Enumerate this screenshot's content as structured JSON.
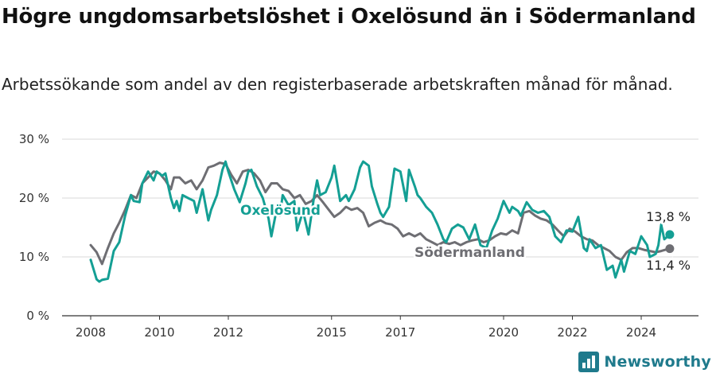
{
  "title": "Högre ungdomsarbetslöshet i Oxelösund än i Södermanland",
  "subtitle": "Arbetssökande som andel av den registerbaserade arbetskraften månad för månad.",
  "brand": "Newsworthy",
  "colors": {
    "oxelosund": "#149f94",
    "sodermanland": "#6e6e73",
    "grid": "#d8d8d8",
    "axis": "#333333"
  },
  "chart_data": {
    "type": "line",
    "ylim": [
      0,
      30
    ],
    "yticks": [
      0,
      10,
      20,
      30
    ],
    "yticklabels": [
      "0 %",
      "10 %",
      "20 %",
      "30 %"
    ],
    "xlim": [
      2007.8,
      2025.5
    ],
    "xticks": [
      2008,
      2010,
      2012,
      2015,
      2017,
      2020,
      2022,
      2024
    ],
    "xticklabels": [
      "2008",
      "2010",
      "2012",
      "2015",
      "2017",
      "2020",
      "2022",
      "2024"
    ],
    "series": [
      {
        "name": "Oxelösund",
        "end_label": "13,8 %",
        "x": [
          2008.0,
          2008.17,
          2008.25,
          2008.33,
          2008.5,
          2008.58,
          2008.67,
          2008.83,
          2009.0,
          2009.17,
          2009.25,
          2009.42,
          2009.5,
          2009.67,
          2009.83,
          2009.92,
          2010.08,
          2010.17,
          2010.33,
          2010.42,
          2010.5,
          2010.58,
          2010.67,
          2010.83,
          2011.0,
          2011.08,
          2011.25,
          2011.42,
          2011.5,
          2011.67,
          2011.83,
          2011.92,
          2012.0,
          2012.17,
          2012.33,
          2012.5,
          2012.58,
          2012.67,
          2012.83,
          2013.0,
          2013.17,
          2013.25,
          2013.42,
          2013.5,
          2013.58,
          2013.75,
          2013.92,
          2014.0,
          2014.17,
          2014.33,
          2014.5,
          2014.58,
          2014.67,
          2014.83,
          2015.0,
          2015.08,
          2015.25,
          2015.42,
          2015.5,
          2015.67,
          2015.83,
          2015.92,
          2016.08,
          2016.17,
          2016.33,
          2016.42,
          2016.5,
          2016.67,
          2016.83,
          2017.0,
          2017.17,
          2017.25,
          2017.42,
          2017.5,
          2017.58,
          2017.75,
          2017.92,
          2018.08,
          2018.25,
          2018.33,
          2018.5,
          2018.67,
          2018.83,
          2019.0,
          2019.17,
          2019.33,
          2019.5,
          2019.67,
          2019.83,
          2020.0,
          2020.17,
          2020.25,
          2020.42,
          2020.5,
          2020.67,
          2020.83,
          2021.0,
          2021.17,
          2021.33,
          2021.5,
          2021.67,
          2021.83,
          2022.0,
          2022.17,
          2022.33,
          2022.42,
          2022.5,
          2022.67,
          2022.83,
          2023.0,
          2023.17,
          2023.25,
          2023.42,
          2023.5,
          2023.67,
          2023.83,
          2024.0,
          2024.17,
          2024.25,
          2024.42,
          2024.5,
          2024.58,
          2024.67,
          2024.83
        ],
        "values": [
          9.5,
          6.2,
          5.8,
          6.1,
          6.3,
          8.5,
          11.0,
          12.5,
          17.0,
          20.5,
          19.5,
          19.3,
          22.5,
          24.5,
          23.0,
          24.5,
          23.8,
          24.2,
          20.0,
          18.3,
          19.5,
          17.8,
          20.5,
          20.0,
          19.5,
          17.5,
          21.5,
          16.2,
          18.0,
          20.5,
          24.8,
          26.2,
          24.5,
          21.5,
          19.3,
          22.5,
          24.5,
          24.8,
          22.0,
          20.0,
          16.5,
          13.5,
          18.5,
          17.0,
          20.5,
          18.8,
          19.5,
          14.5,
          17.8,
          13.8,
          20.5,
          23.0,
          20.5,
          21.0,
          23.5,
          25.5,
          19.5,
          20.5,
          19.5,
          21.5,
          25.2,
          26.2,
          25.5,
          22.0,
          19.0,
          17.5,
          16.8,
          18.5,
          25.0,
          24.5,
          19.5,
          24.8,
          22.0,
          20.5,
          20.0,
          18.5,
          17.5,
          15.5,
          13.0,
          12.5,
          14.8,
          15.5,
          15.0,
          13.0,
          15.5,
          12.0,
          11.5,
          14.5,
          16.5,
          19.5,
          17.5,
          18.5,
          17.8,
          17.0,
          19.3,
          18.0,
          17.5,
          17.8,
          16.8,
          13.5,
          12.5,
          14.5,
          14.3,
          16.8,
          11.5,
          11.0,
          13.0,
          11.5,
          12.0,
          7.8,
          8.5,
          6.5,
          9.5,
          7.5,
          11.0,
          10.5,
          13.5,
          12.0,
          10.0,
          10.5,
          12.0,
          15.5,
          13.0,
          13.8
        ]
      },
      {
        "name": "Södermanland",
        "end_label": "11,4 %",
        "x": [
          2008.0,
          2008.17,
          2008.33,
          2008.5,
          2008.67,
          2008.83,
          2009.0,
          2009.17,
          2009.33,
          2009.5,
          2009.67,
          2009.83,
          2010.0,
          2010.17,
          2010.33,
          2010.42,
          2010.58,
          2010.75,
          2010.92,
          2011.08,
          2011.25,
          2011.42,
          2011.58,
          2011.75,
          2011.92,
          2012.08,
          2012.25,
          2012.42,
          2012.58,
          2012.75,
          2012.92,
          2013.08,
          2013.25,
          2013.42,
          2013.58,
          2013.75,
          2013.92,
          2014.08,
          2014.25,
          2014.42,
          2014.58,
          2014.75,
          2014.92,
          2015.08,
          2015.25,
          2015.42,
          2015.58,
          2015.75,
          2015.92,
          2016.08,
          2016.25,
          2016.42,
          2016.58,
          2016.75,
          2016.92,
          2017.08,
          2017.25,
          2017.42,
          2017.58,
          2017.75,
          2017.92,
          2018.08,
          2018.25,
          2018.42,
          2018.58,
          2018.75,
          2018.92,
          2019.08,
          2019.25,
          2019.42,
          2019.58,
          2019.75,
          2019.92,
          2020.08,
          2020.25,
          2020.42,
          2020.58,
          2020.75,
          2020.92,
          2021.08,
          2021.25,
          2021.42,
          2021.58,
          2021.75,
          2021.92,
          2022.08,
          2022.25,
          2022.42,
          2022.58,
          2022.75,
          2022.92,
          2023.08,
          2023.25,
          2023.42,
          2023.58,
          2023.75,
          2023.92,
          2024.08,
          2024.25,
          2024.42,
          2024.58,
          2024.75,
          2024.83
        ],
        "values": [
          12.0,
          10.8,
          8.8,
          11.5,
          14.0,
          15.8,
          18.0,
          20.5,
          20.0,
          22.5,
          23.5,
          24.5,
          24.2,
          23.0,
          21.5,
          23.5,
          23.5,
          22.5,
          23.0,
          21.5,
          23.0,
          25.2,
          25.5,
          26.0,
          25.8,
          24.0,
          22.5,
          24.5,
          24.8,
          24.2,
          23.0,
          21.0,
          22.5,
          22.5,
          21.5,
          21.2,
          20.0,
          20.5,
          19.0,
          19.5,
          20.5,
          19.3,
          18.0,
          16.8,
          17.5,
          18.5,
          18.0,
          18.3,
          17.5,
          15.2,
          15.8,
          16.2,
          15.7,
          15.5,
          14.8,
          13.5,
          14.0,
          13.5,
          14.0,
          13.0,
          12.5,
          12.0,
          12.5,
          12.2,
          12.5,
          12.0,
          12.5,
          12.8,
          13.0,
          12.5,
          12.8,
          13.5,
          14.0,
          13.8,
          14.5,
          14.0,
          17.5,
          17.8,
          17.0,
          16.5,
          16.2,
          15.5,
          14.5,
          13.5,
          14.8,
          14.3,
          13.5,
          13.0,
          12.8,
          12.0,
          11.5,
          11.0,
          10.0,
          9.5,
          10.8,
          11.5,
          11.5,
          11.2,
          11.0,
          10.8,
          11.0,
          11.3,
          11.4
        ]
      }
    ]
  }
}
